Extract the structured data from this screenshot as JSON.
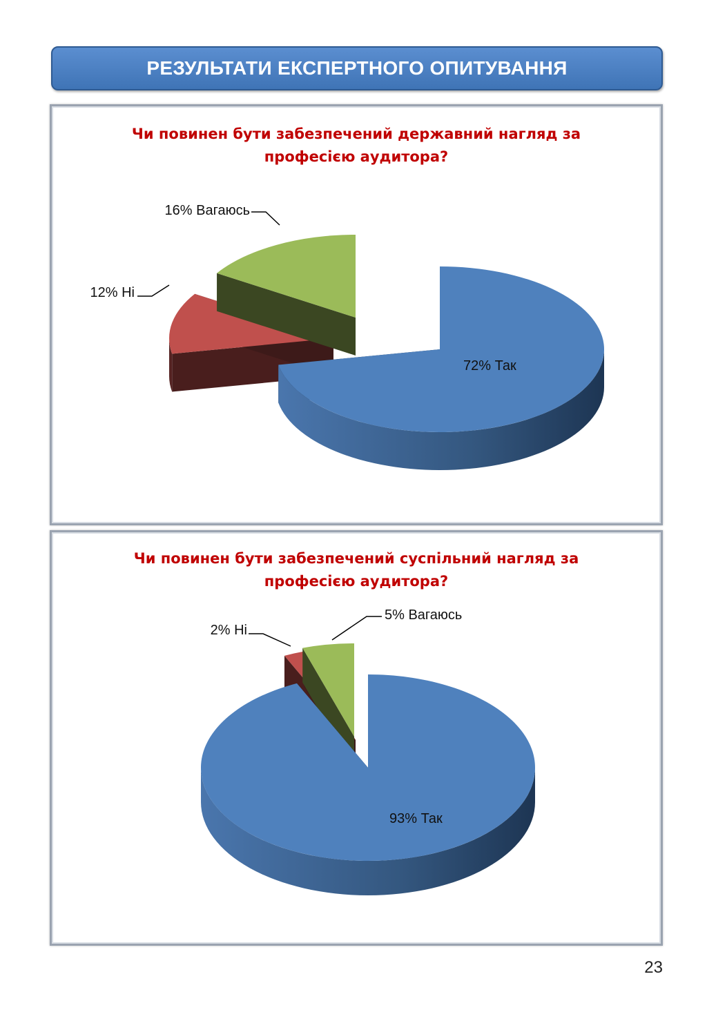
{
  "header": {
    "title": "РЕЗУЛЬТАТИ ЕКСПЕРТНОГО ОПИТУВАННЯ"
  },
  "chart_data": [
    {
      "type": "pie",
      "title_lines": [
        "Чи повинен бути  забезпечений державний нагляд за",
        "професією аудитора?"
      ],
      "labels": [
        "Так",
        "Ні",
        "Вагаюсь"
      ],
      "values": [
        72,
        12,
        16
      ],
      "value_labels": [
        "72% Так",
        "12% Ні",
        "16% Вагаюсь"
      ],
      "colors": [
        "#4f81bd",
        "#c0504d",
        "#9bbb59"
      ]
    },
    {
      "type": "pie",
      "title_lines": [
        "Чи повинен бути  забезпечений суспільний нагляд за",
        "професією аудитора?"
      ],
      "labels": [
        "Так",
        "Ні",
        "Вагаюсь"
      ],
      "values": [
        93,
        2,
        5
      ],
      "value_labels": [
        "93% Так",
        "2% Ні",
        "5% Вагаюсь"
      ],
      "colors": [
        "#4f81bd",
        "#c0504d",
        "#9bbb59"
      ]
    }
  ],
  "page": {
    "number": "23"
  }
}
